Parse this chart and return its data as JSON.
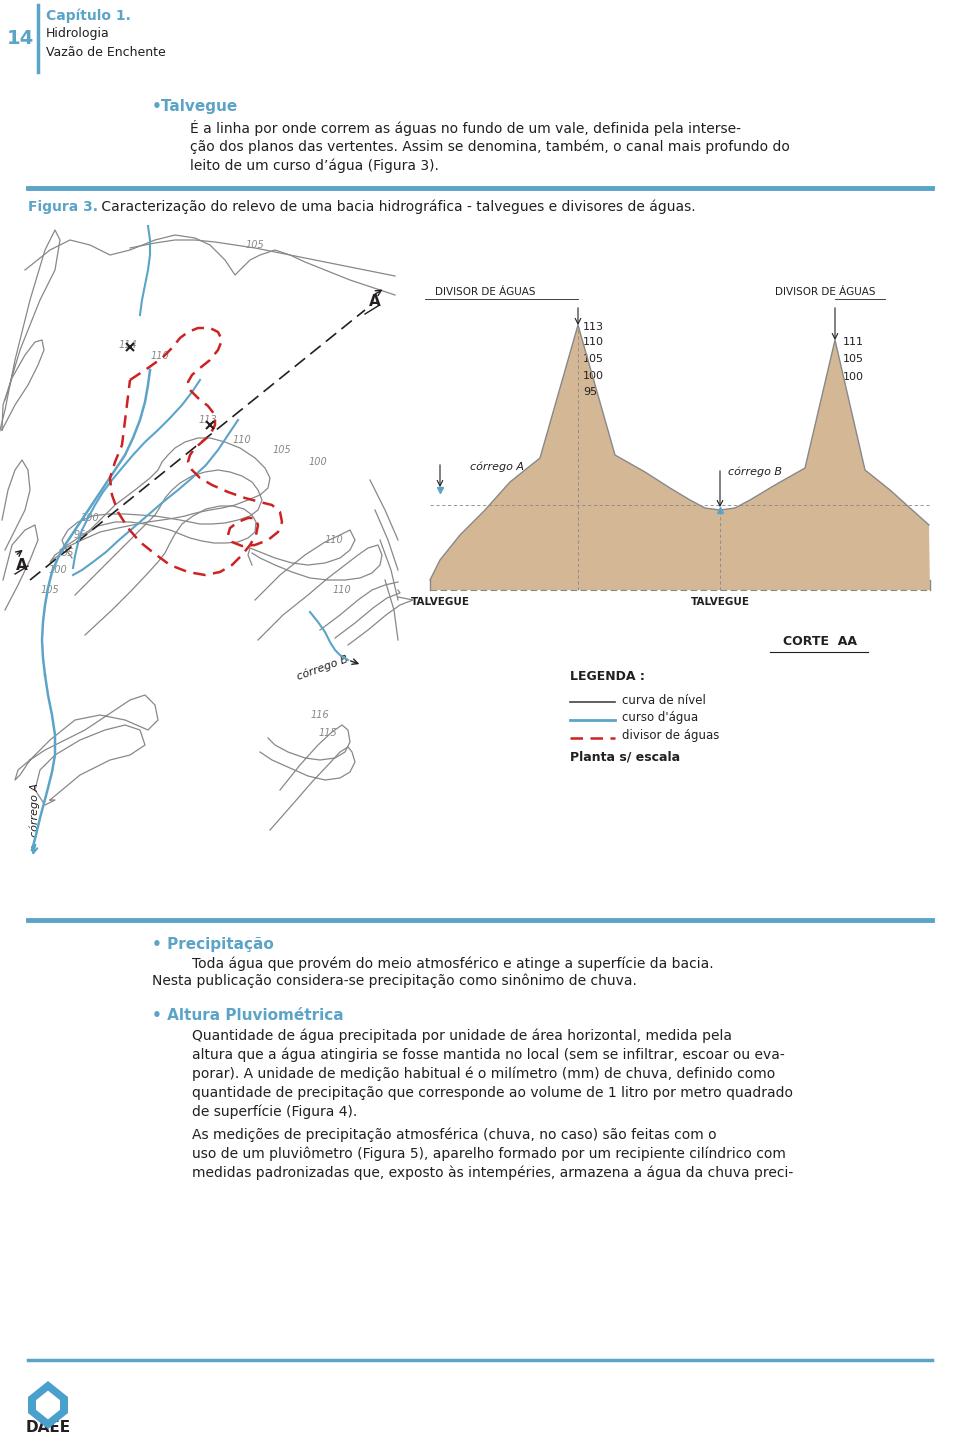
{
  "page_number": "14",
  "header_title": "Capítulo 1.",
  "header_sub1": "Hidrologia",
  "header_sub2": "Vazão de Enchente",
  "header_color": "#5ba4c8",
  "section1_bullet": "•Talvegue",
  "section1_lines": [
    "É a linha por onde correm as águas no fundo de um vale, definida pela interse-",
    "ção dos planos das vertentes. Assim se denomina, também, o canal mais profundo do",
    "leito de um curso d’água (Figura 3)."
  ],
  "figura3_label": "Figura 3.",
  "figura3_text": " Caracterização do relevo de uma bacia hidrográfica - talvegues e divisores de águas.",
  "section2_bullet": "• Precipitação",
  "section2_lines": [
    "Toda água que provém do meio atmosférico e atinge a superfície da bacia.",
    "Nesta publicação considera-se precipitação como sinônimo de chuva."
  ],
  "section3_bullet": "• Altura Pluviométrica",
  "section3_lines1": [
    "Quantidade de água precipitada por unidade de área horizontal, medida pela",
    "altura que a água atingiria se fosse mantida no local (sem se infiltrar, escoar ou eva-",
    "porar). A unidade de medição habitual é o milímetro (mm) de chuva, definido como",
    "quantidade de precipitação que corresponde ao volume de 1 litro por metro quadrado",
    "de superfície (Figura 4)."
  ],
  "section3_lines2": [
    "As medições de precipitação atmosférica (chuva, no caso) são feitas com o",
    "uso de um pluviômetro (Figura 5), aparelho formado por um recipiente cilíndrico com",
    "medidas padronizadas que, exposto às intempéries, armazena a água da chuva preci-"
  ],
  "footer_text": "DAEE",
  "separator_color": "#5ba4c8",
  "bg_color": "#ffffff",
  "text_color": "#231f20",
  "bullet_color": "#5ba4c8",
  "figure3_color": "#5ba4c8",
  "contour_color": "#888888",
  "stream_color": "#5ba4c8",
  "divisor_color": "#cc2222",
  "hill_color": "#d4b896"
}
